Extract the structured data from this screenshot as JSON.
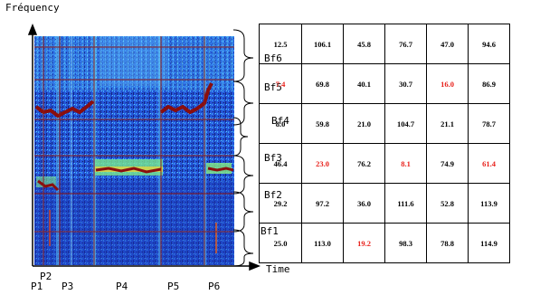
{
  "axis": {
    "ylabel": "Fréquency",
    "xlabel": "Time"
  },
  "periods": [
    "P1",
    "P2",
    "P3",
    "P4",
    "P5",
    "P6"
  ],
  "bands": [
    "Bf6",
    "Bf5",
    "Bf4",
    "Bf3",
    "Bf2",
    "Bf1"
  ],
  "table": {
    "rows": [
      {
        "band": "Bf6",
        "cells": [
          {
            "v": "12.5",
            "hl": false
          },
          {
            "v": "106.1",
            "hl": false
          },
          {
            "v": "45.8",
            "hl": false
          },
          {
            "v": "76.7",
            "hl": false
          },
          {
            "v": "47.0",
            "hl": false
          },
          {
            "v": "94.6",
            "hl": false
          }
        ]
      },
      {
        "band": "Bf5",
        "cells": [
          {
            "v": "7.4",
            "hl": true
          },
          {
            "v": "69.8",
            "hl": false
          },
          {
            "v": "40.1",
            "hl": false
          },
          {
            "v": "30.7",
            "hl": false
          },
          {
            "v": "16.0",
            "hl": true
          },
          {
            "v": "86.9",
            "hl": false
          }
        ]
      },
      {
        "band": "Bf4",
        "cells": [
          {
            "v": "8.0",
            "hl": false
          },
          {
            "v": "59.8",
            "hl": false
          },
          {
            "v": "21.0",
            "hl": false
          },
          {
            "v": "104.7",
            "hl": false
          },
          {
            "v": "21.1",
            "hl": false
          },
          {
            "v": "78.7",
            "hl": false
          }
        ]
      },
      {
        "band": "Bf3",
        "cells": [
          {
            "v": "46.4",
            "hl": false
          },
          {
            "v": "23.0",
            "hl": true
          },
          {
            "v": "76.2",
            "hl": false
          },
          {
            "v": "8.1",
            "hl": true
          },
          {
            "v": "74.9",
            "hl": false
          },
          {
            "v": "61.4",
            "hl": true
          }
        ]
      },
      {
        "band": "Bf2",
        "cells": [
          {
            "v": "29.2",
            "hl": false
          },
          {
            "v": "97.2",
            "hl": false
          },
          {
            "v": "36.0",
            "hl": false
          },
          {
            "v": "111.6",
            "hl": false
          },
          {
            "v": "52.8",
            "hl": false
          },
          {
            "v": "113.9",
            "hl": false
          }
        ]
      },
      {
        "band": "Bf1",
        "cells": [
          {
            "v": "25.0",
            "hl": false
          },
          {
            "v": "113.0",
            "hl": false
          },
          {
            "v": "19.2",
            "hl": true
          },
          {
            "v": "98.3",
            "hl": false
          },
          {
            "v": "78.8",
            "hl": false
          },
          {
            "v": "114.9",
            "hl": false
          }
        ]
      }
    ]
  },
  "colors": {
    "highlight": "#e8221c",
    "spectro_base": "#1f49c9",
    "grid_line": "#8b1a1a"
  }
}
